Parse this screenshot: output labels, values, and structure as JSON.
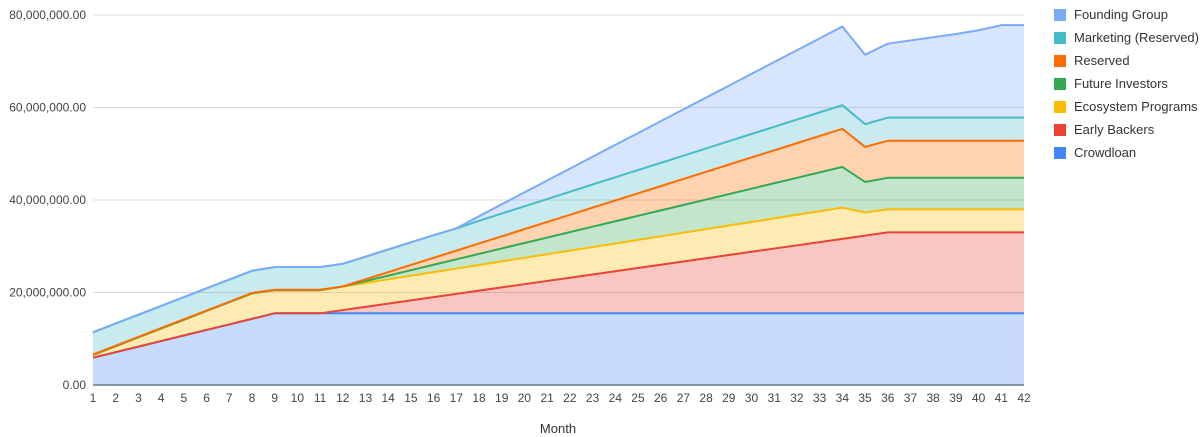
{
  "chart_data": {
    "type": "area",
    "stacked": true,
    "title": "",
    "xlabel": "Month",
    "ylabel": "",
    "ylim": [
      0,
      80000000
    ],
    "y_ticks": [
      0,
      20000000,
      40000000,
      60000000,
      80000000
    ],
    "y_tick_labels": [
      "0.00",
      "20,000,000.00",
      "40,000,000.00",
      "60,000,000.00",
      "80,000,000.00"
    ],
    "grid": true,
    "legend_position": "right",
    "x": [
      1,
      2,
      3,
      4,
      5,
      6,
      7,
      8,
      9,
      10,
      11,
      12,
      13,
      14,
      15,
      16,
      17,
      18,
      19,
      20,
      21,
      22,
      23,
      24,
      25,
      26,
      27,
      28,
      29,
      30,
      31,
      32,
      33,
      34,
      35,
      36,
      37,
      38,
      39,
      40,
      41,
      42
    ],
    "series": [
      {
        "name": "Crowdloan",
        "color": "#4285f4",
        "values": [
          5900000,
          7100000,
          8300000,
          9500000,
          10700000,
          11900000,
          13100000,
          14300000,
          15500000,
          15500000,
          15500000,
          15500000,
          15500000,
          15500000,
          15500000,
          15500000,
          15500000,
          15500000,
          15500000,
          15500000,
          15500000,
          15500000,
          15500000,
          15500000,
          15500000,
          15500000,
          15500000,
          15500000,
          15500000,
          15500000,
          15500000,
          15500000,
          15500000,
          15500000,
          15500000,
          15500000,
          15500000,
          15500000,
          15500000,
          15500000,
          15500000,
          15500000
        ]
      },
      {
        "name": "Early Backers",
        "color": "#ea4335",
        "values": [
          0,
          0,
          0,
          0,
          0,
          0,
          0,
          0,
          0,
          0,
          0,
          700000,
          1400000,
          2100000,
          2800000,
          3500000,
          4200000,
          4900000,
          5600000,
          6300000,
          7000000,
          7700000,
          8400000,
          9100000,
          9800000,
          10500000,
          11200000,
          11900000,
          12600000,
          13300000,
          14000000,
          14700000,
          15400000,
          16100000,
          16800000,
          17500000,
          17500000,
          17500000,
          17500000,
          17500000,
          17500000,
          17500000
        ]
      },
      {
        "name": "Ecosystem Programs",
        "color": "#fbbc04",
        "values": [
          600000,
          1300000,
          2000000,
          2700000,
          3400000,
          4100000,
          4800000,
          5500000,
          5000000,
          5000000,
          5000000,
          5100000,
          5175000,
          5250000,
          5325000,
          5400000,
          5475000,
          5550000,
          5625000,
          5700000,
          5775000,
          5850000,
          5925000,
          6000000,
          6075000,
          6150000,
          6225000,
          6300000,
          6375000,
          6450000,
          6525000,
          6600000,
          6675000,
          6750000,
          5000000,
          5000000,
          5000000,
          5000000,
          5000000,
          5000000,
          5000000,
          5000000
        ]
      },
      {
        "name": "Future Investors",
        "color": "#34a853",
        "values": [
          0,
          0,
          0,
          0,
          0,
          0,
          0,
          0,
          0,
          0,
          0,
          0,
          400000,
          800000,
          1200000,
          1600000,
          2000000,
          2400000,
          2800000,
          3200000,
          3600000,
          4000000,
          4400000,
          4800000,
          5200000,
          5600000,
          6000000,
          6400000,
          6800000,
          7200000,
          7600000,
          8000000,
          8400000,
          8800000,
          6600000,
          6800000,
          6800000,
          6800000,
          6800000,
          6800000,
          6800000,
          6800000
        ]
      },
      {
        "name": "Reserved",
        "color": "#ff6d01",
        "values": [
          100000,
          100000,
          100000,
          100000,
          100000,
          100000,
          100000,
          100000,
          100000,
          100000,
          100000,
          0,
          375000,
          750000,
          1125000,
          1500000,
          1875000,
          2250000,
          2625000,
          3000000,
          3375000,
          3750000,
          4125000,
          4500000,
          4875000,
          5250000,
          5625000,
          6000000,
          6375000,
          6750000,
          7125000,
          7500000,
          7875000,
          8250000,
          7600000,
          8000000,
          8000000,
          8000000,
          8000000,
          8000000,
          8000000,
          8000000
        ]
      },
      {
        "name": "Marketing (Reserved)",
        "color": "#46bdc6",
        "values": [
          4800000,
          4800000,
          4800000,
          4800000,
          4800000,
          4800000,
          4800000,
          4800000,
          4900000,
          4900000,
          4900000,
          4900000,
          4900000,
          4900000,
          4900000,
          4900000,
          4800000,
          4900000,
          4920000,
          4940000,
          4960000,
          4980000,
          5000000,
          5010000,
          5020000,
          5030000,
          5040000,
          5050000,
          5060000,
          5070000,
          5080000,
          5090000,
          5100000,
          5100000,
          4900000,
          5000000,
          5000000,
          5000000,
          5000000,
          5000000,
          5000000,
          5000000
        ]
      },
      {
        "name": "Founding Group",
        "color": "#7baaf7",
        "values": [
          0,
          0,
          0,
          0,
          0,
          0,
          0,
          0,
          0,
          0,
          0,
          0,
          0,
          0,
          0,
          0,
          0,
          1000000,
          2000000,
          3000000,
          4000000,
          5000000,
          6000000,
          7000000,
          8000000,
          9000000,
          10000000,
          11000000,
          12000000,
          13000000,
          14000000,
          15000000,
          16000000,
          17000000,
          15000000,
          16000000,
          16700000,
          17400000,
          18100000,
          18900000,
          20000000,
          20000000
        ]
      }
    ],
    "legend_order": [
      "Founding Group",
      "Marketing (Reserved)",
      "Reserved",
      "Future Investors",
      "Ecosystem Programs",
      "Early Backers",
      "Crowdloan"
    ]
  }
}
